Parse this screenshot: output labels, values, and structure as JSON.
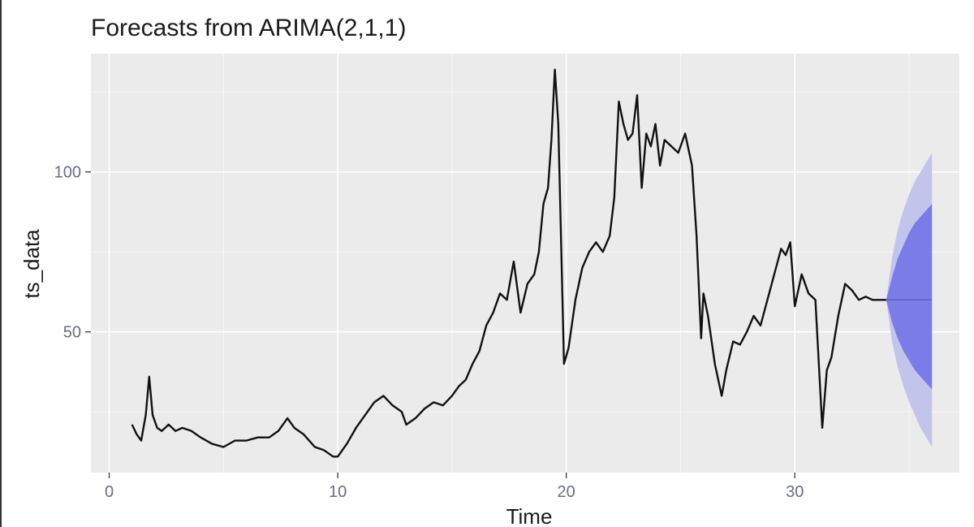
{
  "chart_data": {
    "type": "line",
    "title": "Forecasts from ARIMA(2,1,1)",
    "xlabel": "Time",
    "ylabel": "ts_data",
    "xlim": [
      -0.8,
      37.2
    ],
    "ylim": [
      6,
      137
    ],
    "x_ticks": [
      0,
      10,
      20,
      30
    ],
    "y_ticks": [
      50,
      100
    ],
    "colors": {
      "panel": "#ebebeb",
      "grid": "#ffffff",
      "line": "#111111",
      "pi80": "#7b7ce8",
      "pi95": "#c2c4ec"
    },
    "series": [
      {
        "name": "ts_data",
        "x": [
          1.0,
          1.2,
          1.4,
          1.6,
          1.75,
          1.9,
          2.1,
          2.3,
          2.6,
          2.9,
          3.2,
          3.6,
          4.0,
          4.5,
          5.0,
          5.5,
          6.0,
          6.5,
          7.0,
          7.4,
          7.8,
          8.1,
          8.5,
          9.0,
          9.4,
          9.8,
          10.0,
          10.4,
          10.8,
          11.2,
          11.6,
          12.0,
          12.4,
          12.8,
          13.0,
          13.4,
          13.8,
          14.2,
          14.6,
          15.0,
          15.3,
          15.6,
          15.9,
          16.2,
          16.5,
          16.8,
          17.1,
          17.4,
          17.7,
          18.0,
          18.3,
          18.6,
          18.8,
          19.0,
          19.2,
          19.35,
          19.5,
          19.65,
          19.8,
          19.9,
          20.1,
          20.4,
          20.7,
          21.0,
          21.3,
          21.6,
          21.9,
          22.1,
          22.3,
          22.5,
          22.7,
          22.9,
          23.1,
          23.3,
          23.5,
          23.7,
          23.9,
          24.1,
          24.3,
          24.6,
          24.9,
          25.2,
          25.5,
          25.7,
          25.9,
          26.0,
          26.2,
          26.5,
          26.8,
          27.0,
          27.3,
          27.6,
          27.9,
          28.2,
          28.5,
          28.8,
          29.1,
          29.4,
          29.6,
          29.8,
          30.0,
          30.3,
          30.6,
          30.9,
          31.2,
          31.4,
          31.6,
          31.9,
          32.2,
          32.5,
          32.8,
          33.1,
          33.4,
          33.7,
          34.0
        ],
        "values": [
          21,
          18,
          16,
          24,
          36,
          24,
          20,
          19,
          21,
          19,
          20,
          19,
          17,
          15,
          14,
          16,
          16,
          17,
          17,
          19,
          23,
          20,
          18,
          14,
          13,
          11,
          11,
          15,
          20,
          24,
          28,
          30,
          27,
          25,
          21,
          23,
          26,
          28,
          27,
          30,
          33,
          35,
          40,
          44,
          52,
          56,
          62,
          60,
          72,
          56,
          65,
          68,
          75,
          90,
          95,
          110,
          132,
          115,
          70,
          40,
          45,
          60,
          70,
          75,
          78,
          75,
          80,
          92,
          122,
          115,
          110,
          112,
          124,
          95,
          112,
          108,
          115,
          102,
          110,
          108,
          106,
          112,
          102,
          80,
          48,
          62,
          55,
          40,
          30,
          38,
          47,
          46,
          50,
          55,
          52,
          60,
          68,
          76,
          74,
          78,
          58,
          68,
          62,
          60,
          20,
          38,
          42,
          55,
          65,
          63,
          60,
          61,
          60,
          60,
          60
        ]
      }
    ],
    "forecast": {
      "x": [
        34.0,
        34.25,
        34.5,
        34.75,
        35.0,
        35.25,
        35.5,
        35.75,
        36.0
      ],
      "point": [
        60,
        60,
        60,
        60,
        60,
        60,
        60,
        60,
        60
      ],
      "lo80": [
        60,
        53,
        48,
        44,
        41,
        38,
        36,
        34,
        32
      ],
      "hi80": [
        60,
        67,
        73,
        77,
        81,
        84,
        86,
        88,
        90
      ],
      "lo95": [
        60,
        47,
        39,
        33,
        28,
        24,
        20,
        17,
        14
      ],
      "hi95": [
        60,
        73,
        82,
        88,
        93,
        97,
        100,
        103,
        106
      ]
    }
  }
}
